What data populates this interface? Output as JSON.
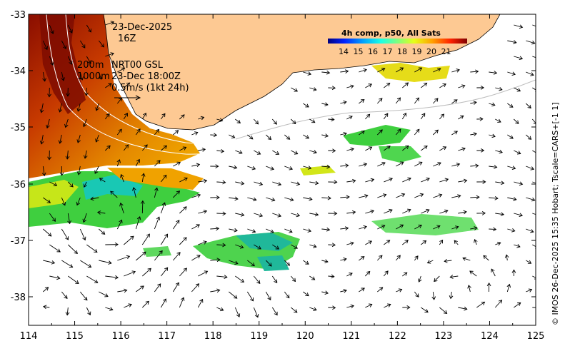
{
  "map": {
    "date_line1": "23-Dec-2025",
    "date_line2": "16Z",
    "contour_labels": [
      "200m",
      "1000m"
    ],
    "product_line1": "NRT00 GSL",
    "product_line2": "23-Dec 18:00Z",
    "arrow_scale_label": "0.5m/s (1kt 24h)",
    "colorbar": {
      "title": "4h comp, p50, All Sats",
      "ticks": [
        "14",
        "15",
        "16",
        "17",
        "18",
        "19",
        "20",
        "21"
      ],
      "colors": [
        "#00007f",
        "#0022ff",
        "#00a0ff",
        "#19ffe6",
        "#7fff7f",
        "#e6ff19",
        "#ffa000",
        "#ff2200",
        "#7f0000"
      ]
    },
    "y_axis_ticks": [
      "-33",
      "-34",
      "-35",
      "-36",
      "-37",
      "-38"
    ],
    "x_axis_ticks": [
      "114",
      "115",
      "116",
      "117",
      "118",
      "119",
      "120",
      "121",
      "122",
      "123",
      "124",
      "125"
    ],
    "credit": "© IMOS 26-Dec-2025 15:35 Hobart; Tscale=CARS+[-1 1]",
    "land_color": "#fdc993"
  }
}
